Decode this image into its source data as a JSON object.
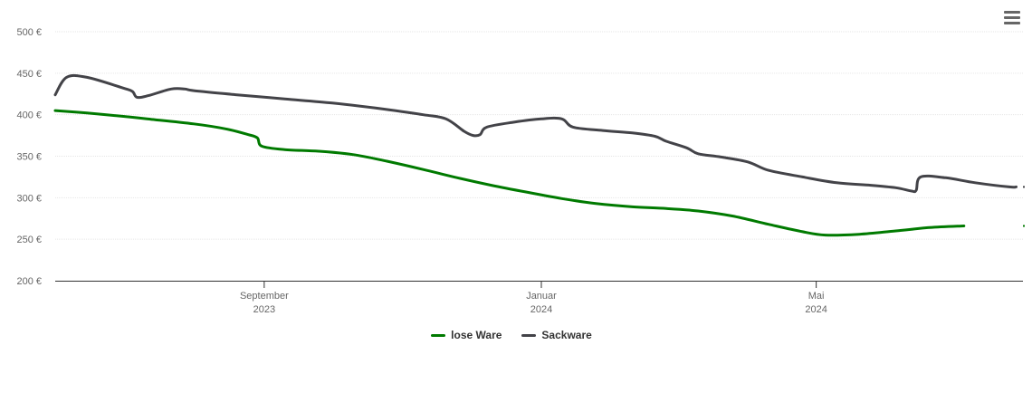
{
  "chart_data": {
    "type": "line",
    "y_unit_suffix": " €",
    "ylim": [
      200,
      500
    ],
    "y_ticks": [
      200,
      250,
      300,
      350,
      400,
      450,
      500
    ],
    "y_tick_labels": [
      "200 €",
      "250 €",
      "300 €",
      "350 €",
      "400 €",
      "450 €",
      "500 €"
    ],
    "x_range": [
      "2023-06-01",
      "2024-07-31"
    ],
    "x_ticks": [
      {
        "date": "2023-09-01",
        "label": "September",
        "year": "2023"
      },
      {
        "date": "2024-01-01",
        "label": "Januar",
        "year": "2024"
      },
      {
        "date": "2024-05-01",
        "label": "Mai",
        "year": "2024"
      }
    ],
    "grid": true,
    "legend_position": "bottom",
    "series": [
      {
        "name": "lose Ware",
        "color": "#007a00",
        "points": [
          [
            "2023-06-01",
            405
          ],
          [
            "2023-06-15",
            402
          ],
          [
            "2023-07-01",
            398
          ],
          [
            "2023-07-15",
            394
          ],
          [
            "2023-08-01",
            389
          ],
          [
            "2023-08-15",
            383
          ],
          [
            "2023-08-25",
            376
          ],
          [
            "2023-08-29",
            372
          ],
          [
            "2023-08-31",
            362
          ],
          [
            "2023-09-10",
            358
          ],
          [
            "2023-09-25",
            356
          ],
          [
            "2023-10-10",
            352
          ],
          [
            "2023-10-25",
            344
          ],
          [
            "2023-11-10",
            334
          ],
          [
            "2023-11-25",
            324
          ],
          [
            "2023-12-10",
            315
          ],
          [
            "2023-12-25",
            307
          ],
          [
            "2024-01-10",
            299
          ],
          [
            "2024-01-25",
            293
          ],
          [
            "2024-02-10",
            289
          ],
          [
            "2024-02-25",
            287
          ],
          [
            "2024-03-10",
            284
          ],
          [
            "2024-03-25",
            278
          ],
          [
            "2024-04-10",
            268
          ],
          [
            "2024-04-25",
            259
          ],
          [
            "2024-05-05",
            255
          ],
          [
            "2024-05-20",
            256
          ],
          [
            "2024-06-05",
            260
          ],
          [
            "2024-06-20",
            264
          ],
          [
            "2024-07-05",
            266
          ]
        ]
      },
      {
        "name": "Sackware",
        "color": "#434348",
        "points": [
          [
            "2023-06-01",
            424
          ],
          [
            "2023-06-06",
            445
          ],
          [
            "2023-06-15",
            445
          ],
          [
            "2023-07-01",
            432
          ],
          [
            "2023-07-05",
            428
          ],
          [
            "2023-07-07",
            421
          ],
          [
            "2023-07-12",
            423
          ],
          [
            "2023-07-22",
            431
          ],
          [
            "2023-07-28",
            431
          ],
          [
            "2023-08-01",
            429
          ],
          [
            "2023-08-20",
            424
          ],
          [
            "2023-09-10",
            419
          ],
          [
            "2023-10-01",
            414
          ],
          [
            "2023-10-20",
            408
          ],
          [
            "2023-11-10",
            400
          ],
          [
            "2023-11-20",
            395
          ],
          [
            "2023-11-28",
            380
          ],
          [
            "2023-12-02",
            375
          ],
          [
            "2023-12-05",
            376
          ],
          [
            "2023-12-08",
            385
          ],
          [
            "2023-12-20",
            391
          ],
          [
            "2024-01-01",
            395
          ],
          [
            "2024-01-10",
            395
          ],
          [
            "2024-01-15",
            385
          ],
          [
            "2024-01-28",
            381
          ],
          [
            "2024-02-10",
            378
          ],
          [
            "2024-02-20",
            374
          ],
          [
            "2024-02-25",
            368
          ],
          [
            "2024-03-05",
            360
          ],
          [
            "2024-03-10",
            353
          ],
          [
            "2024-03-20",
            349
          ],
          [
            "2024-04-01",
            343
          ],
          [
            "2024-04-10",
            333
          ],
          [
            "2024-04-25",
            325
          ],
          [
            "2024-05-10",
            318
          ],
          [
            "2024-05-25",
            315
          ],
          [
            "2024-06-05",
            312
          ],
          [
            "2024-06-12",
            308
          ],
          [
            "2024-06-14",
            309
          ],
          [
            "2024-06-16",
            325
          ],
          [
            "2024-06-27",
            324
          ],
          [
            "2024-07-10",
            318
          ],
          [
            "2024-07-25",
            313
          ],
          [
            "2024-07-28",
            313
          ]
        ]
      }
    ]
  }
}
